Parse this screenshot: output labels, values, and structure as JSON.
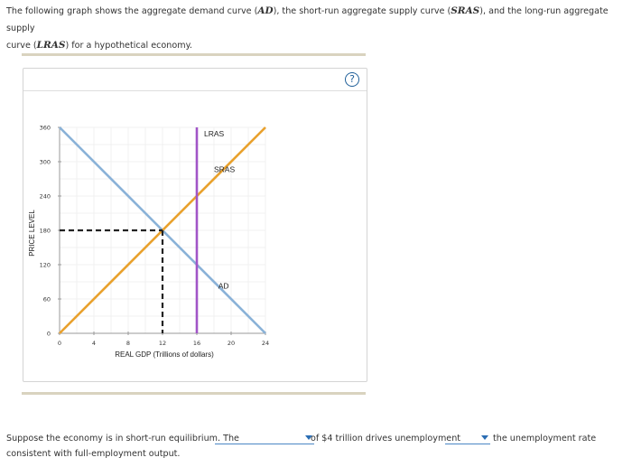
{
  "intro": {
    "part1": "The following graph shows the aggregate demand curve (",
    "ad": "AD",
    "part2": "), the short-run aggregate supply curve (",
    "sras": "SRAS",
    "part3": "), and the long-run aggregate supply",
    "part4": "curve (",
    "lras": "LRAS",
    "part5": ") for a hypothetical economy."
  },
  "help_label": "?",
  "chart_data": {
    "type": "line",
    "xlabel": "REAL GDP (Trillions of dollars)",
    "ylabel": "PRICE LEVEL",
    "xlim": [
      0,
      24
    ],
    "ylim": [
      0,
      360
    ],
    "x_ticks": [
      0,
      4,
      8,
      12,
      16,
      20,
      24
    ],
    "y_ticks": [
      0,
      60,
      120,
      180,
      240,
      300,
      360
    ],
    "grid": true,
    "series": [
      {
        "name": "AD",
        "color": "#8ab2d8",
        "points": [
          [
            0,
            360
          ],
          [
            24,
            0
          ]
        ]
      },
      {
        "name": "SRAS",
        "color": "#e9a12d",
        "points": [
          [
            0,
            0
          ],
          [
            24,
            360
          ]
        ]
      },
      {
        "name": "LRAS",
        "color": "#a155c7",
        "points": [
          [
            16,
            0
          ],
          [
            16,
            360
          ]
        ]
      }
    ],
    "equilibrium_guides": {
      "x": 12,
      "y": 180,
      "color": "#222222"
    }
  },
  "question": {
    "text1": "Suppose the economy is in short-run equilibrium. The",
    "text2": "of $4 trillion drives unemployment",
    "text3": "the unemployment rate",
    "text4": "consistent with full-employment output.",
    "dropdown1_value": "",
    "dropdown2_value": ""
  }
}
